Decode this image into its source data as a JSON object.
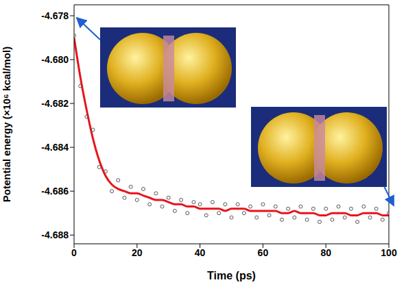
{
  "chart_data": {
    "type": "line",
    "x_label": "Time (ps)",
    "y_label": "Potential energy (×10⁶ kcal/mol)",
    "x": [
      0,
      2,
      4,
      6,
      8,
      10,
      12,
      14,
      16,
      18,
      20,
      22,
      24,
      26,
      28,
      30,
      32,
      34,
      36,
      38,
      40,
      42,
      44,
      46,
      48,
      50,
      52,
      54,
      56,
      58,
      60,
      62,
      64,
      66,
      68,
      70,
      72,
      74,
      76,
      78,
      80,
      82,
      84,
      86,
      88,
      90,
      92,
      94,
      96,
      98,
      100
    ],
    "series": [
      {
        "type": "scatter",
        "color": "#555555",
        "marker": "circle-open",
        "values": [
          -4.6789,
          -4.6812,
          -4.6826,
          -4.6832,
          -4.6849,
          -4.6851,
          -4.686,
          -4.6855,
          -4.6863,
          -4.6858,
          -4.6864,
          -4.6859,
          -4.6866,
          -4.6861,
          -4.6867,
          -4.6863,
          -4.6869,
          -4.6864,
          -4.687,
          -4.6865,
          -4.6866,
          -4.6871,
          -4.6865,
          -4.687,
          -4.6866,
          -4.6872,
          -4.6866,
          -4.687,
          -4.6867,
          -4.6872,
          -4.6866,
          -4.6871,
          -4.6867,
          -4.6873,
          -4.6868,
          -4.6872,
          -4.6867,
          -4.6873,
          -4.6868,
          -4.6874,
          -4.6868,
          -4.6873,
          -4.6867,
          -4.6872,
          -4.6868,
          -4.6874,
          -4.6867,
          -4.6872,
          -4.6868,
          -4.6873,
          -4.687
        ]
      },
      {
        "type": "line",
        "color": "#e8141c",
        "line_style": "solid",
        "values": [
          -4.679,
          -4.6808,
          -4.6823,
          -4.6836,
          -4.6846,
          -4.6853,
          -4.6857,
          -4.6859,
          -4.686,
          -4.6861,
          -4.6861,
          -4.6862,
          -4.6863,
          -4.6864,
          -4.6864,
          -4.6865,
          -4.6866,
          -4.6866,
          -4.6867,
          -4.6867,
          -4.6868,
          -4.6868,
          -4.6868,
          -4.6868,
          -4.6869,
          -4.6868,
          -4.6868,
          -4.6868,
          -4.6869,
          -4.6869,
          -4.6869,
          -4.6869,
          -4.6869,
          -4.687,
          -4.687,
          -4.6869,
          -4.687,
          -4.687,
          -4.687,
          -4.6871,
          -4.6871,
          -4.687,
          -4.687,
          -4.687,
          -4.6871,
          -4.6871,
          -4.687,
          -4.687,
          -4.687,
          -4.6871,
          -4.6871
        ]
      }
    ],
    "xlim": [
      0,
      100
    ],
    "xticks": [
      0,
      20,
      40,
      60,
      80,
      100
    ],
    "ylim": [
      -4.6884,
      -4.6775
    ],
    "yticks": [
      -4.688,
      -4.686,
      -4.684,
      -4.682,
      {
        "value": -4.68,
        "label": "-4.680"
      },
      -4.678
    ],
    "grid": false
  }
}
